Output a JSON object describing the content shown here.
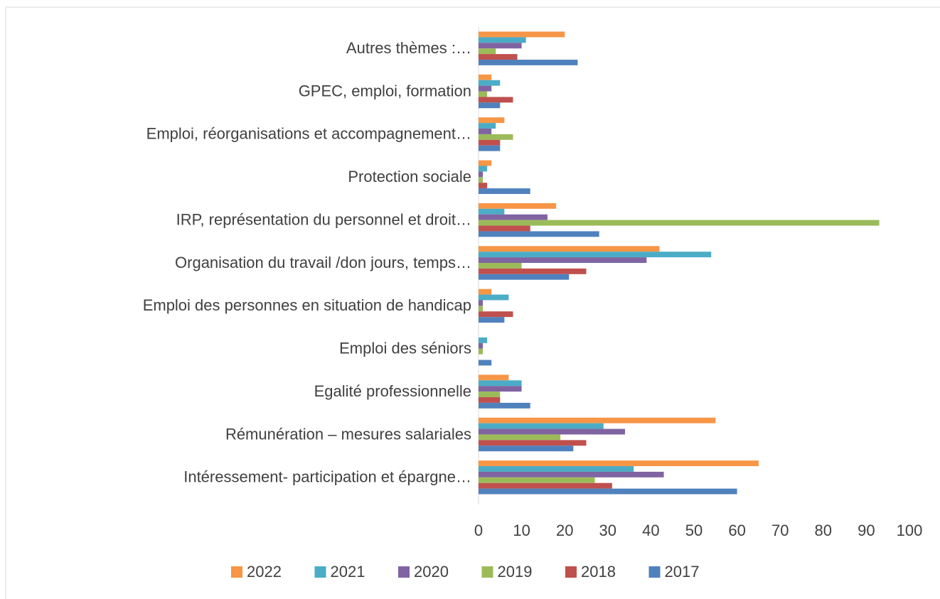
{
  "chart_data": {
    "type": "bar",
    "orientation": "horizontal",
    "categories": [
      "Autres thèmes  :…",
      "GPEC, emploi,  formation",
      "Emploi, réorganisations et accompagnement…",
      "Protection sociale",
      "IRP, représentation du personnel et  droit…",
      "Organisation du travail /don jours, temps…",
      "Emploi des personnes en situation de handicap",
      "Emploi des séniors",
      "Egalité professionnelle",
      "Rémunération – mesures salariales",
      "Intéressement- participation et épargne…"
    ],
    "series": [
      {
        "name": "2022",
        "color": "#f79646",
        "values": [
          20,
          3,
          6,
          3,
          18,
          42,
          3,
          0,
          7,
          55,
          65
        ]
      },
      {
        "name": "2021",
        "color": "#4bacc6",
        "values": [
          11,
          5,
          4,
          2,
          6,
          54,
          7,
          2,
          10,
          29,
          36
        ]
      },
      {
        "name": "2020",
        "color": "#8064a2",
        "values": [
          10,
          3,
          3,
          1,
          16,
          39,
          1,
          1,
          10,
          34,
          43
        ]
      },
      {
        "name": "2019",
        "color": "#9bbb59",
        "values": [
          4,
          2,
          8,
          1,
          93,
          10,
          1,
          1,
          5,
          19,
          27
        ]
      },
      {
        "name": "2018",
        "color": "#c0504d",
        "values": [
          9,
          8,
          5,
          2,
          12,
          25,
          8,
          0,
          5,
          25,
          31
        ]
      },
      {
        "name": "2017",
        "color": "#4f81bd",
        "values": [
          23,
          5,
          5,
          12,
          28,
          21,
          6,
          3,
          12,
          22,
          60
        ]
      }
    ],
    "xlim": [
      0,
      100
    ],
    "xticks": [
      0,
      10,
      20,
      30,
      40,
      50,
      60,
      70,
      80,
      90,
      100
    ],
    "legend": "bottom"
  }
}
